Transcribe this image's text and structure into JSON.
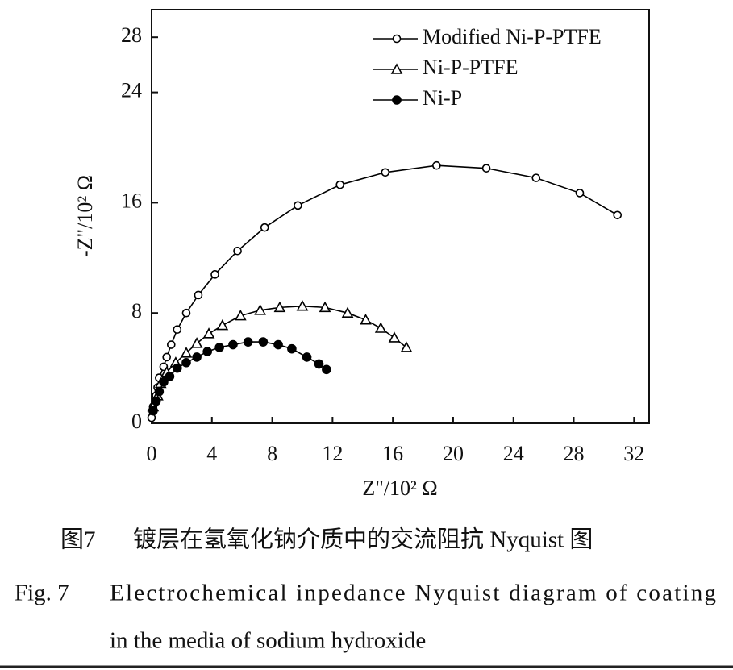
{
  "chart_data": {
    "type": "line",
    "xlabel": "Z\"/10² Ω",
    "ylabel": "-Z\"/10² Ω",
    "xlim": [
      0,
      33
    ],
    "ylim": [
      0,
      30
    ],
    "xticks": [
      0,
      4,
      8,
      12,
      16,
      20,
      24,
      28,
      32
    ],
    "yticks": [
      0,
      8,
      16,
      24,
      28
    ],
    "legend": "upper right",
    "series": [
      {
        "name": "Modified Ni-P-PTFE",
        "color": "#000000",
        "marker": "open-circle",
        "x": [
          0,
          0.1,
          0.3,
          0.4,
          0.5,
          0.8,
          1.0,
          1.3,
          1.7,
          2.3,
          3.1,
          4.2,
          5.7,
          7.5,
          9.7,
          12.5,
          15.5,
          18.9,
          22.2,
          25.5,
          28.4,
          30.9
        ],
        "values": [
          0.4,
          1.2,
          2.0,
          2.6,
          3.3,
          4.1,
          4.8,
          5.7,
          6.8,
          8.0,
          9.3,
          10.8,
          12.5,
          14.2,
          15.8,
          17.3,
          18.2,
          18.7,
          18.5,
          17.8,
          16.7,
          15.1
        ]
      },
      {
        "name": "Ni-P-PTFE",
        "color": "#000000",
        "marker": "open-triangle",
        "x": [
          0.1,
          0.4,
          0.6,
          1.0,
          1.6,
          2.3,
          3.0,
          3.8,
          4.7,
          5.9,
          7.2,
          8.5,
          10.0,
          11.5,
          13.0,
          14.2,
          15.2,
          16.1,
          16.9
        ],
        "values": [
          1.2,
          2.0,
          2.9,
          3.7,
          4.4,
          5.1,
          5.8,
          6.5,
          7.1,
          7.8,
          8.2,
          8.4,
          8.5,
          8.4,
          8.0,
          7.5,
          6.9,
          6.2,
          5.5
        ]
      },
      {
        "name": "Ni-P",
        "color": "#000000",
        "marker": "filled-circle",
        "x": [
          0.1,
          0.3,
          0.5,
          0.8,
          1.2,
          1.7,
          2.3,
          3.0,
          3.7,
          4.5,
          5.4,
          6.4,
          7.4,
          8.4,
          9.3,
          10.3,
          11.1,
          11.6
        ],
        "values": [
          0.9,
          1.6,
          2.3,
          3.0,
          3.4,
          4.0,
          4.4,
          4.8,
          5.2,
          5.5,
          5.7,
          5.9,
          5.9,
          5.7,
          5.4,
          4.8,
          4.3,
          3.9
        ]
      }
    ]
  },
  "caption": {
    "cn_label": "图7",
    "cn_text": "镀层在氢氧化钠介质中的交流阻抗 Nyquist 图",
    "en_label": "Fig. 7",
    "en_lines": [
      "Electrochemical inpedance Nyquist diagram of coating",
      "in the media of sodium hydroxide"
    ]
  }
}
